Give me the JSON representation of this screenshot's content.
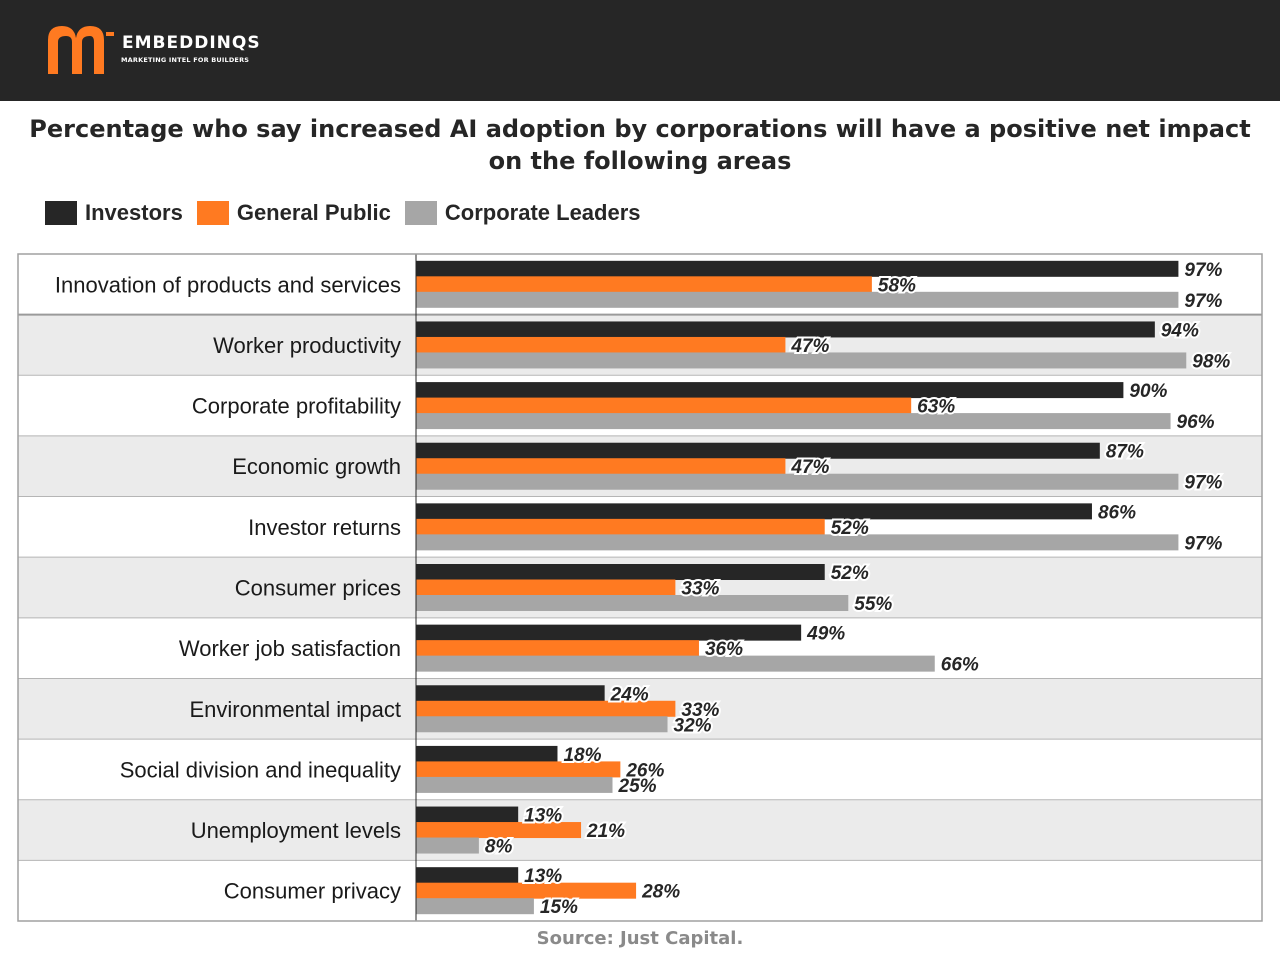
{
  "brand": {
    "name": "EMBEDDINQS",
    "tagline": "MARKETING INTEL FOR BUILDERS"
  },
  "chart_data": {
    "type": "bar",
    "orientation": "horizontal",
    "title": "Percentage who say increased AI adoption by corporations will have a positive net impact on the following areas",
    "xlim": [
      0,
      100
    ],
    "value_suffix": "%",
    "legend_position": "top-left",
    "categories": [
      "Innovation of products and services",
      "Worker productivity",
      "Corporate profitability",
      "Economic growth",
      "Investor returns",
      "Consumer prices",
      "Worker job satisfaction",
      "Environmental impact",
      "Social division and inequality",
      "Unemployment levels",
      "Consumer privacy"
    ],
    "series": [
      {
        "name": "Investors",
        "color": "#262626",
        "values": [
          97,
          94,
          90,
          87,
          86,
          52,
          49,
          24,
          18,
          13,
          13
        ]
      },
      {
        "name": "General Public",
        "color": "#ff7a21",
        "values": [
          58,
          47,
          63,
          47,
          52,
          33,
          36,
          33,
          26,
          21,
          28
        ]
      },
      {
        "name": "Corporate Leaders",
        "color": "#a6a6a6",
        "values": [
          97,
          98,
          96,
          97,
          97,
          55,
          66,
          32,
          25,
          8,
          15
        ]
      }
    ]
  },
  "source": "Source: Just Capital."
}
